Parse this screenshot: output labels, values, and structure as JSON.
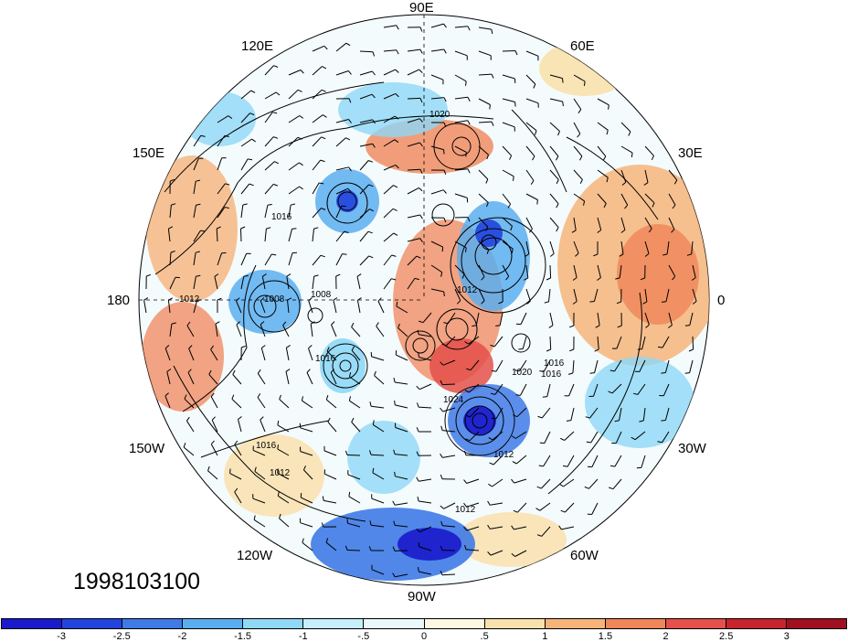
{
  "date_stamp": "1998103100",
  "longitude_labels": {
    "lon_90E": "90E",
    "lon_60E": "60E",
    "lon_120E": "120E",
    "lon_30E": "30E",
    "lon_150E": "150E",
    "lon_180": "180",
    "lon_0": "0",
    "lon_150W": "150W",
    "lon_30W": "30W",
    "lon_120W": "120W",
    "lon_60W": "60W",
    "lon_90W": "90W"
  },
  "isobar_labels": [
    "1020",
    "1016",
    "1012",
    "1008",
    "1008",
    "1012",
    "1016",
    "1020",
    "1016",
    "1024",
    "1016",
    "1012",
    "1012",
    "1016",
    "1012"
  ],
  "colorbar": {
    "colors": [
      "#1a1acc",
      "#2244dd",
      "#3f7ae6",
      "#5aaef0",
      "#8fd8f6",
      "#c6eefb",
      "#eaf8fc",
      "#fdf8e2",
      "#f9e1ad",
      "#f6b47a",
      "#f08659",
      "#e4504a",
      "#c8242d",
      "#a01020"
    ],
    "tick_labels": [
      "-3",
      "-2.5",
      "-2",
      "-1.5",
      "-1",
      "-.5",
      "0",
      ".5",
      "1",
      "1.5",
      "2",
      "2.5",
      "3"
    ]
  }
}
